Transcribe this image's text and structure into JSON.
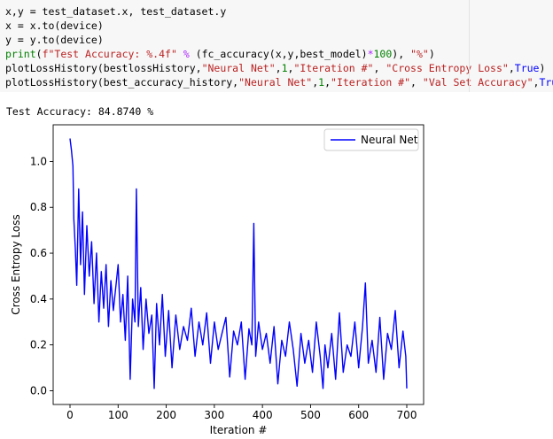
{
  "notebook": {
    "code_lines": [
      [
        {
          "t": "x,y = test_dataset.x, test_dataset.y",
          "c": ""
        }
      ],
      [
        {
          "t": "x = x.to(device)",
          "c": ""
        }
      ],
      [
        {
          "t": "y = y.to(device)",
          "c": ""
        }
      ],
      [
        {
          "t": "print",
          "c": "tk-kw"
        },
        {
          "t": "(",
          "c": ""
        },
        {
          "t": "f\"Test Accuracy: %.4f\"",
          "c": "tk-str"
        },
        {
          "t": " ",
          "c": ""
        },
        {
          "t": "%",
          "c": "tk-op"
        },
        {
          "t": " (fc_accuracy(x,y,best_model)",
          "c": ""
        },
        {
          "t": "*",
          "c": "tk-op"
        },
        {
          "t": "100",
          "c": "tk-num"
        },
        {
          "t": "), ",
          "c": ""
        },
        {
          "t": "\"%\"",
          "c": "tk-str"
        },
        {
          "t": ")",
          "c": ""
        }
      ],
      [
        {
          "t": "plotLossHistory(bestlossHistory,",
          "c": ""
        },
        {
          "t": "\"Neural Net\"",
          "c": "tk-str"
        },
        {
          "t": ",",
          "c": ""
        },
        {
          "t": "1",
          "c": "tk-num"
        },
        {
          "t": ",",
          "c": ""
        },
        {
          "t": "\"Iteration #\"",
          "c": "tk-str"
        },
        {
          "t": ", ",
          "c": ""
        },
        {
          "t": "\"Cross Entropy Loss\"",
          "c": "tk-str"
        },
        {
          "t": ",",
          "c": ""
        },
        {
          "t": "True",
          "c": "tk-builtin"
        },
        {
          "t": ")",
          "c": ""
        }
      ],
      [
        {
          "t": "plotLossHistory(best_accuracy_history,",
          "c": ""
        },
        {
          "t": "\"Neural Net\"",
          "c": "tk-str"
        },
        {
          "t": ",",
          "c": ""
        },
        {
          "t": "1",
          "c": "tk-num"
        },
        {
          "t": ",",
          "c": ""
        },
        {
          "t": "\"Iteration #\"",
          "c": "tk-str"
        },
        {
          "t": ", ",
          "c": ""
        },
        {
          "t": "\"Val Set Accuracy\"",
          "c": "tk-str"
        },
        {
          "t": ",",
          "c": ""
        },
        {
          "t": "True",
          "c": "tk-builtin"
        },
        {
          "t": ")",
          "c": ""
        }
      ]
    ],
    "output_text": "Test Accuracy: 84.8740 %"
  },
  "colors": {
    "cell_background": "#f7f7f7",
    "series_line": "#0000ff",
    "string": "#ba2121",
    "keyword": "#008000",
    "builtin": "#0000ff",
    "operator": "#aa22ff"
  },
  "chart_data": {
    "type": "line",
    "title": "",
    "xlabel": "Iteration #",
    "ylabel": "Cross Entropy Loss",
    "xlim": [
      -35,
      735
    ],
    "ylim": [
      -0.06,
      1.16
    ],
    "xticks": [
      0,
      100,
      200,
      300,
      400,
      500,
      600,
      700
    ],
    "yticks": [
      0.0,
      0.2,
      0.4,
      0.6,
      0.8,
      1.0
    ],
    "ytick_labels": [
      "0.0",
      "0.2",
      "0.4",
      "0.6",
      "0.8",
      "1.0"
    ],
    "grid": false,
    "legend": {
      "position": "top-right",
      "entries": [
        "Neural Net"
      ]
    },
    "series": [
      {
        "name": "Neural Net",
        "color": "#0000ff",
        "x": [
          0,
          3,
          6,
          8,
          11,
          14,
          18,
          22,
          26,
          30,
          35,
          40,
          45,
          50,
          55,
          60,
          65,
          70,
          75,
          80,
          85,
          90,
          95,
          100,
          105,
          110,
          115,
          120,
          125,
          130,
          135,
          138,
          142,
          147,
          152,
          158,
          164,
          170,
          175,
          180,
          186,
          192,
          198,
          205,
          212,
          220,
          228,
          236,
          244,
          252,
          260,
          268,
          276,
          284,
          292,
          300,
          308,
          316,
          324,
          332,
          340,
          348,
          356,
          364,
          372,
          378,
          382,
          386,
          392,
          400,
          408,
          416,
          424,
          432,
          440,
          448,
          456,
          464,
          472,
          480,
          488,
          496,
          504,
          512,
          520,
          526,
          530,
          536,
          544,
          552,
          560,
          568,
          576,
          584,
          592,
          600,
          608,
          614,
          620,
          628,
          636,
          644,
          652,
          660,
          668,
          676,
          684,
          692,
          698,
          700
        ],
        "y": [
          1.1,
          1.05,
          0.98,
          0.75,
          0.62,
          0.46,
          0.88,
          0.55,
          0.78,
          0.42,
          0.72,
          0.5,
          0.65,
          0.38,
          0.6,
          0.3,
          0.52,
          0.36,
          0.55,
          0.28,
          0.48,
          0.35,
          0.45,
          0.55,
          0.3,
          0.42,
          0.22,
          0.5,
          0.05,
          0.4,
          0.3,
          0.88,
          0.28,
          0.45,
          0.18,
          0.4,
          0.25,
          0.33,
          0.01,
          0.38,
          0.2,
          0.42,
          0.15,
          0.35,
          0.1,
          0.33,
          0.18,
          0.28,
          0.22,
          0.36,
          0.15,
          0.3,
          0.2,
          0.34,
          0.12,
          0.3,
          0.18,
          0.25,
          0.32,
          0.06,
          0.26,
          0.2,
          0.3,
          0.05,
          0.27,
          0.2,
          0.73,
          0.15,
          0.3,
          0.18,
          0.25,
          0.12,
          0.28,
          0.03,
          0.22,
          0.15,
          0.3,
          0.18,
          0.02,
          0.25,
          0.12,
          0.22,
          0.08,
          0.3,
          0.15,
          0.01,
          0.2,
          0.1,
          0.25,
          0.05,
          0.34,
          0.08,
          0.2,
          0.15,
          0.3,
          0.1,
          0.28,
          0.47,
          0.12,
          0.22,
          0.08,
          0.32,
          0.05,
          0.25,
          0.18,
          0.35,
          0.1,
          0.26,
          0.15,
          0.01
        ]
      }
    ]
  }
}
